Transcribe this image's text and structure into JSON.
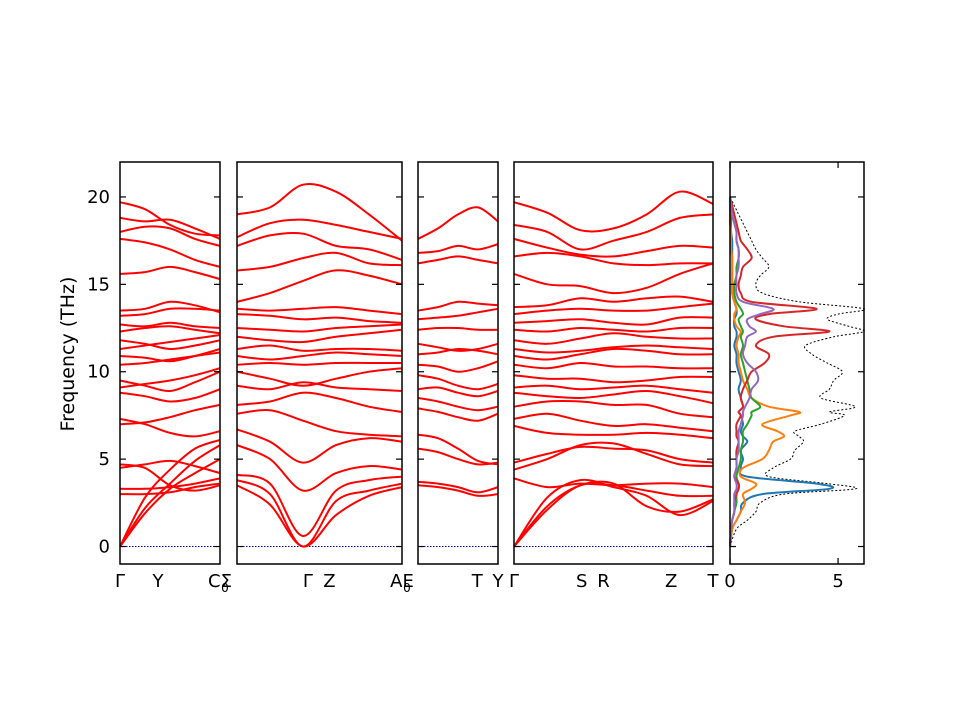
{
  "chart_data": {
    "type": "line",
    "ylabel": "Frequency (THz)",
    "ylim": [
      -1,
      22
    ],
    "yticks": [
      0,
      5,
      10,
      15,
      20
    ],
    "colors": {
      "band": "#ff0000",
      "zero_line": "#0000cc",
      "dos_total": "#000000",
      "dos_1": "#1f77b4",
      "dos_2": "#ff7f0e",
      "dos_3": "#2ca02c",
      "dos_4": "#d62728",
      "dos_5": "#9467bd"
    },
    "band_panels": [
      {
        "q_labels": [
          "Γ",
          "Y",
          "C"
        ],
        "q_positions": [
          0,
          0.38,
          1
        ],
        "right_label": {
          "main": "CΣ",
          "sub": "0"
        },
        "bands": [
          [
            0,
            2.8,
            4.4,
            5.6,
            6.1
          ],
          [
            0,
            2.2,
            3.6,
            4.9,
            5.8
          ],
          [
            0,
            1.9,
            3.3,
            4.2,
            5.0
          ],
          [
            3.0,
            3.0,
            3.1,
            3.4,
            3.6
          ],
          [
            3.3,
            3.3,
            3.4,
            3.6,
            3.9
          ],
          [
            4.5,
            4.7,
            4.9,
            4.6,
            4.2
          ],
          [
            4.7,
            4.5,
            3.5,
            3.2,
            3.5
          ],
          [
            7.0,
            7.1,
            7.4,
            7.8,
            8.1
          ],
          [
            7.3,
            7.0,
            6.5,
            6.3,
            6.6
          ],
          [
            8.8,
            8.6,
            8.3,
            8.5,
            9.0
          ],
          [
            9.1,
            9.3,
            9.5,
            9.8,
            10.2
          ],
          [
            9.5,
            9.2,
            8.9,
            9.4,
            10.0
          ],
          [
            10.4,
            10.5,
            10.7,
            10.9,
            11.1
          ],
          [
            10.9,
            10.8,
            10.6,
            10.9,
            11.3
          ],
          [
            11.3,
            11.5,
            11.7,
            11.9,
            12.1
          ],
          [
            11.8,
            11.6,
            11.3,
            11.5,
            11.8
          ],
          [
            12.3,
            12.5,
            12.6,
            12.4,
            12.2
          ],
          [
            12.7,
            12.6,
            12.8,
            12.6,
            12.5
          ],
          [
            13.2,
            13.3,
            13.6,
            13.6,
            13.5
          ],
          [
            13.5,
            13.6,
            14.0,
            13.8,
            13.4
          ],
          [
            15.6,
            15.7,
            16.0,
            15.7,
            15.3
          ],
          [
            17.6,
            17.4,
            17.0,
            16.4,
            16.0
          ],
          [
            18.0,
            18.3,
            18.2,
            17.6,
            17.2
          ],
          [
            18.8,
            18.6,
            18.7,
            18.2,
            17.6
          ],
          [
            19.7,
            19.3,
            18.4,
            17.9,
            17.8
          ]
        ]
      },
      {
        "q_labels": [
          "Γ",
          "Z",
          "A"
        ],
        "q_positions": [
          0.43,
          0.56,
          1
        ],
        "right_label": {
          "main": "AE",
          "sub": "0"
        },
        "bands": [
          [
            3.5,
            2.4,
            0,
            1.8,
            2.9,
            3.4
          ],
          [
            3.8,
            3.0,
            0,
            2.6,
            3.2,
            3.6
          ],
          [
            4.1,
            3.6,
            0.6,
            3.2,
            3.8,
            4.0
          ],
          [
            5.8,
            5.0,
            3.2,
            4.2,
            4.6,
            4.4
          ],
          [
            6.7,
            6.0,
            4.8,
            5.8,
            6.2,
            6.0
          ],
          [
            7.6,
            7.8,
            7.2,
            6.6,
            6.4,
            6.3
          ],
          [
            8.1,
            8.3,
            8.8,
            8.5,
            8.0,
            7.7
          ],
          [
            9.2,
            9.0,
            9.4,
            9.1,
            9.0,
            8.9
          ],
          [
            10.0,
            9.6,
            9.2,
            9.6,
            10.0,
            10.2
          ],
          [
            10.4,
            10.5,
            10.4,
            10.5,
            10.5,
            10.5
          ],
          [
            10.9,
            10.7,
            10.9,
            11.1,
            11.0,
            10.9
          ],
          [
            11.3,
            11.5,
            11.2,
            11.3,
            11.3,
            11.2
          ],
          [
            12.0,
            11.8,
            11.7,
            12.0,
            12.2,
            12.4
          ],
          [
            12.5,
            12.4,
            12.3,
            12.5,
            12.6,
            12.7
          ],
          [
            13.3,
            13.2,
            13.0,
            13.1,
            12.9,
            12.8
          ],
          [
            13.6,
            13.5,
            13.6,
            13.7,
            13.5,
            13.3
          ],
          [
            14.0,
            14.5,
            15.2,
            15.8,
            15.5,
            15.0
          ],
          [
            15.8,
            16.0,
            16.5,
            16.8,
            16.2,
            16.1
          ],
          [
            17.2,
            17.8,
            17.9,
            17.2,
            17.0,
            16.4
          ],
          [
            17.7,
            18.5,
            18.7,
            18.4,
            18.0,
            17.6
          ],
          [
            19.0,
            19.4,
            20.7,
            20.3,
            19.0,
            17.5
          ]
        ]
      },
      {
        "q_labels": [
          "T",
          "Y"
        ],
        "q_positions": [
          0.74,
          1
        ],
        "right_label": null,
        "bands": [
          [
            3.5,
            3.4,
            3.2,
            2.9,
            3.0
          ],
          [
            3.7,
            3.6,
            3.4,
            3.1,
            3.4
          ],
          [
            5.6,
            5.4,
            5.0,
            4.7,
            4.8
          ],
          [
            6.4,
            6.2,
            5.6,
            4.9,
            4.7
          ],
          [
            7.9,
            7.7,
            7.4,
            7.2,
            7.6
          ],
          [
            8.5,
            8.3,
            8.0,
            7.8,
            8.0
          ],
          [
            9.0,
            9.1,
            8.8,
            8.6,
            8.9
          ],
          [
            9.8,
            9.6,
            9.2,
            9.0,
            9.3
          ],
          [
            10.4,
            10.3,
            10.0,
            10.2,
            10.6
          ],
          [
            11.0,
            11.1,
            11.3,
            11.2,
            11.0
          ],
          [
            11.6,
            11.4,
            11.2,
            11.3,
            11.6
          ],
          [
            12.4,
            12.5,
            12.5,
            12.4,
            12.4
          ],
          [
            13.0,
            13.1,
            13.2,
            13.4,
            13.6
          ],
          [
            13.5,
            13.7,
            14.0,
            13.9,
            13.8
          ],
          [
            16.2,
            16.4,
            16.6,
            16.4,
            16.2
          ],
          [
            16.8,
            16.9,
            17.2,
            17.0,
            17.3
          ],
          [
            17.6,
            18.2,
            19.0,
            19.4,
            18.6
          ]
        ]
      },
      {
        "q_labels": [
          "Γ",
          "S",
          "R",
          "Z",
          "T"
        ],
        "q_positions": [
          0,
          0.34,
          0.45,
          0.79,
          1
        ],
        "right_label": null,
        "bands": [
          [
            0,
            2.3,
            3.5,
            3.6,
            2.3,
            2.0,
            2.7
          ],
          [
            0,
            2.8,
            3.8,
            3.4,
            2.9,
            1.8,
            2.6
          ],
          [
            0,
            2.1,
            3.5,
            3.5,
            3.2,
            2.9,
            2.9
          ],
          [
            3.9,
            3.4,
            3.6,
            3.5,
            3.6,
            3.6,
            3.4
          ],
          [
            4.4,
            5.0,
            5.8,
            5.9,
            5.3,
            4.7,
            4.6
          ],
          [
            4.8,
            5.3,
            5.7,
            5.6,
            5.5,
            5.0,
            4.8
          ],
          [
            6.9,
            6.5,
            6.4,
            6.4,
            6.5,
            6.4,
            6.2
          ],
          [
            7.3,
            7.6,
            7.2,
            6.9,
            7.0,
            6.8,
            6.6
          ],
          [
            8.0,
            8.3,
            8.3,
            8.1,
            8.1,
            7.6,
            7.4
          ],
          [
            8.8,
            8.6,
            8.5,
            8.7,
            8.9,
            8.6,
            8.2
          ],
          [
            9.1,
            9.2,
            9.0,
            9.1,
            9.2,
            9.0,
            8.8
          ],
          [
            9.8,
            9.6,
            9.6,
            9.4,
            9.5,
            9.7,
            9.7
          ],
          [
            10.4,
            10.2,
            10.5,
            10.3,
            10.3,
            10.2,
            10.2
          ],
          [
            10.9,
            10.7,
            11.0,
            11.3,
            11.2,
            11.0,
            11.0
          ],
          [
            11.3,
            11.1,
            11.2,
            11.4,
            11.5,
            11.4,
            11.3
          ],
          [
            11.8,
            11.6,
            11.9,
            12.2,
            12.0,
            11.9,
            11.9
          ],
          [
            12.4,
            12.3,
            12.5,
            12.4,
            12.3,
            12.5,
            12.5
          ],
          [
            12.8,
            12.9,
            13.0,
            12.8,
            12.7,
            13.1,
            13.1
          ],
          [
            13.3,
            13.5,
            13.6,
            13.5,
            13.5,
            13.7,
            13.9
          ],
          [
            13.7,
            13.8,
            14.2,
            14.0,
            14.2,
            14.3,
            14.0
          ],
          [
            15.6,
            15.0,
            14.9,
            14.5,
            14.8,
            15.6,
            16.2
          ],
          [
            16.6,
            16.8,
            16.6,
            16.2,
            16.1,
            16.2,
            16.2
          ],
          [
            17.6,
            17.1,
            16.7,
            16.6,
            16.9,
            17.2,
            17.1
          ],
          [
            18.4,
            18.0,
            17.0,
            17.5,
            18.0,
            18.8,
            19.0
          ],
          [
            19.7,
            19.1,
            18.1,
            18.2,
            19.0,
            20.3,
            19.6
          ]
        ]
      }
    ],
    "dos_panel": {
      "xlim": [
        0,
        6.2
      ],
      "xticks": [
        0,
        5
      ],
      "freq": [
        0,
        1,
        1.5,
        2,
        2.5,
        3,
        3.3,
        3.6,
        4,
        4.5,
        5,
        5.5,
        6,
        6.3,
        6.6,
        7,
        7.5,
        7.7,
        8,
        8.5,
        9,
        9.5,
        10,
        10.5,
        11,
        11.5,
        12,
        12.3,
        12.6,
        13,
        13.3,
        13.6,
        14,
        14.5,
        15,
        15.5,
        16,
        16.5,
        17,
        17.5,
        18,
        18.5,
        19,
        19.5,
        20
      ],
      "total": [
        0,
        0.3,
        0.8,
        1.2,
        1.4,
        2.5,
        5.8,
        4.5,
        1.8,
        2.0,
        2.8,
        3.0,
        3.4,
        3.2,
        3.0,
        4.2,
        5.3,
        4.6,
        5.8,
        4.2,
        4.6,
        4.8,
        5.2,
        4.5,
        3.8,
        3.5,
        4.8,
        6.2,
        5.5,
        4.5,
        5.0,
        6.2,
        3.2,
        1.5,
        1.2,
        1.4,
        1.8,
        1.5,
        1.2,
        1.0,
        0.8,
        0.6,
        0.4,
        0.2,
        0
      ],
      "series": [
        {
          "values": [
            0,
            0.1,
            0.3,
            0.5,
            0.6,
            1.5,
            4.6,
            4.0,
            0.8,
            0.5,
            0.6,
            0.5,
            0.8,
            0.6,
            0.5,
            0.6,
            0.5,
            0.4,
            0.6,
            0.5,
            0.4,
            0.5,
            0.4,
            0.3,
            0.3,
            0.2,
            0.3,
            0.3,
            0.2,
            0.2,
            0.3,
            0.3,
            0.2,
            0.1,
            0.1,
            0.1,
            0.1,
            0.1,
            0.1,
            0.1,
            0.05,
            0.05,
            0.05,
            0,
            0
          ]
        },
        {
          "values": [
            0,
            0.1,
            0.3,
            0.5,
            0.7,
            0.6,
            1.0,
            1.2,
            0.5,
            0.6,
            1.5,
            1.8,
            2.0,
            2.5,
            2.2,
            1.5,
            2.8,
            3.2,
            1.8,
            1.0,
            0.8,
            0.6,
            0.5,
            0.4,
            0.4,
            0.3,
            0.4,
            0.5,
            0.3,
            0.2,
            0.2,
            0.3,
            0.2,
            0.1,
            0.1,
            0.1,
            0.1,
            0.1,
            0.05,
            0.05,
            0.05,
            0,
            0,
            0,
            0
          ]
        },
        {
          "values": [
            0,
            0.05,
            0.1,
            0.2,
            0.3,
            0.3,
            0.4,
            0.4,
            0.3,
            0.4,
            0.5,
            0.5,
            0.6,
            0.6,
            0.6,
            0.8,
            1.0,
            1.0,
            1.4,
            1.0,
            0.9,
            0.8,
            0.7,
            0.6,
            0.5,
            0.6,
            0.5,
            0.6,
            0.5,
            0.4,
            0.6,
            0.5,
            0.3,
            0.2,
            0.2,
            0.3,
            0.3,
            0.4,
            0.4,
            0.3,
            0.3,
            0.2,
            0.1,
            0.05,
            0
          ]
        },
        {
          "values": [
            0,
            0.05,
            0.1,
            0.2,
            0.2,
            0.3,
            0.4,
            0.4,
            0.2,
            0.3,
            0.3,
            0.3,
            0.4,
            0.3,
            0.3,
            0.3,
            0.5,
            0.4,
            0.6,
            0.5,
            0.6,
            0.8,
            1.0,
            1.6,
            1.8,
            1.2,
            2.0,
            4.6,
            2.5,
            1.2,
            1.8,
            4.0,
            1.0,
            0.5,
            0.4,
            0.5,
            0.6,
            1.0,
            0.8,
            0.5,
            0.4,
            0.3,
            0.2,
            0.1,
            0
          ]
        },
        {
          "values": [
            0,
            0.05,
            0.1,
            0.2,
            0.2,
            0.2,
            0.3,
            0.3,
            0.2,
            0.3,
            0.3,
            0.4,
            0.4,
            0.4,
            0.4,
            0.5,
            0.6,
            0.6,
            0.7,
            0.9,
            1.0,
            1.3,
            1.2,
            0.8,
            0.6,
            0.7,
            0.8,
            1.2,
            0.9,
            0.8,
            1.4,
            2.0,
            0.6,
            0.3,
            0.3,
            0.3,
            0.4,
            0.4,
            0.4,
            0.3,
            0.3,
            0.2,
            0.1,
            0.05,
            0
          ]
        }
      ]
    }
  }
}
